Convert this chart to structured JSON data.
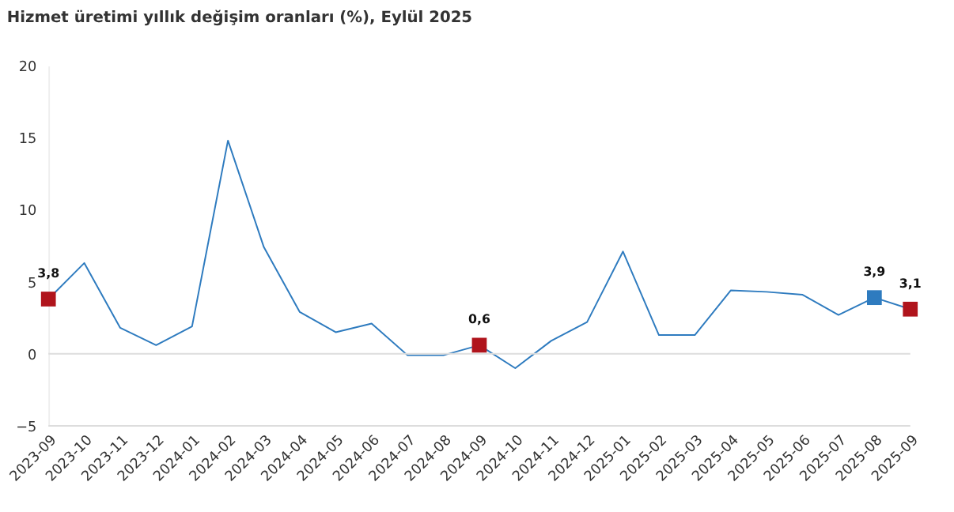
{
  "chart_data": {
    "type": "line",
    "title": "Hizmet üretimi yıllık değişim oranları (%), Eylül 2025",
    "categories": [
      "2023-09",
      "2023-10",
      "2023-11",
      "2023-12",
      "2024-01",
      "2024-02",
      "2024-03",
      "2024-04",
      "2024-05",
      "2024-06",
      "2024-07",
      "2024-08",
      "2024-09",
      "2024-10",
      "2024-11",
      "2024-12",
      "2025-01",
      "2025-02",
      "2025-03",
      "2025-04",
      "2025-05",
      "2025-06",
      "2025-07",
      "2025-08",
      "2025-09"
    ],
    "series": [
      {
        "color": "#2e7bbf",
        "values": [
          3.8,
          6.3,
          1.8,
          0.6,
          1.9,
          14.8,
          7.4,
          2.9,
          1.5,
          2.1,
          -0.1,
          -0.1,
          0.6,
          -1.0,
          0.9,
          2.2,
          7.1,
          1.3,
          1.3,
          4.4,
          4.3,
          4.1,
          2.7,
          3.9,
          3.1
        ],
        "line_style": "solid",
        "marker": "none"
      },
      {
        "type": "scatter",
        "marker": "square",
        "values": [
          3.8,
          null,
          null,
          null,
          null,
          null,
          null,
          null,
          null,
          null,
          null,
          null,
          0.6,
          null,
          null,
          null,
          null,
          null,
          null,
          null,
          null,
          null,
          null,
          3.9,
          3.1
        ],
        "colors": [
          "#b0141c",
          null,
          null,
          null,
          null,
          null,
          null,
          null,
          null,
          null,
          null,
          null,
          "#b0141c",
          null,
          null,
          null,
          null,
          null,
          null,
          null,
          null,
          null,
          null,
          "#2e7bbf",
          "#b0141c"
        ],
        "value_labels": [
          "3,8",
          null,
          null,
          null,
          null,
          null,
          null,
          null,
          null,
          null,
          null,
          null,
          "0,6",
          null,
          null,
          null,
          null,
          null,
          null,
          null,
          null,
          null,
          null,
          "3,9",
          "3,1"
        ]
      }
    ],
    "ylim": [
      -5,
      20
    ],
    "yticks": [
      -5,
      0,
      5,
      10,
      15,
      20
    ],
    "grid": false,
    "ref_lines": [
      {
        "axis": "y",
        "value": 0,
        "color": "#dddddd"
      }
    ]
  }
}
